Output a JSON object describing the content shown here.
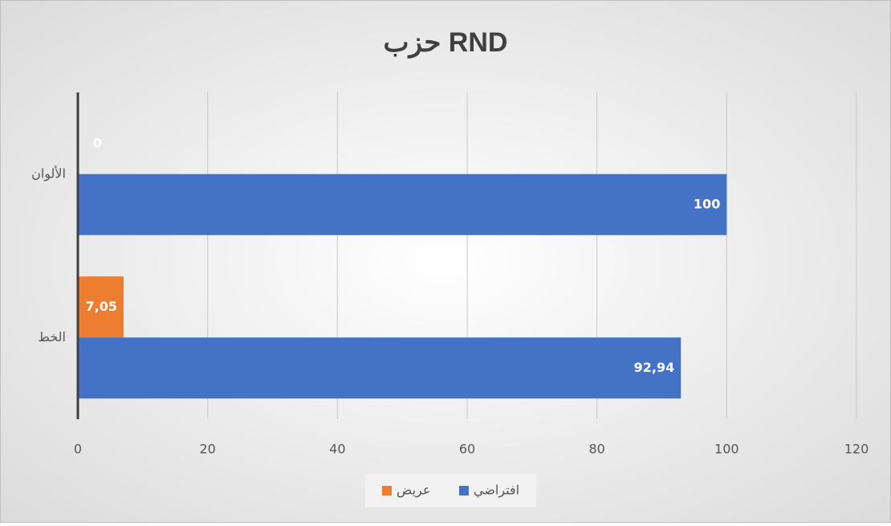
{
  "chart_data": {
    "type": "barh",
    "title": "حزب RND",
    "categories": [
      "الألوان",
      "الخط"
    ],
    "series": [
      {
        "name": "عريض",
        "color": "#ed7d31",
        "values": [
          0,
          7.05
        ],
        "value_labels": [
          "0",
          "7,05"
        ]
      },
      {
        "name": "افتراضي",
        "color": "#4472c4",
        "values": [
          100,
          92.94
        ],
        "value_labels": [
          "100",
          "92,94"
        ]
      }
    ],
    "xlim": [
      0,
      120
    ],
    "xticks": [
      0,
      20,
      40,
      60,
      80,
      100,
      120
    ],
    "grid": true,
    "legend": "bottom"
  }
}
